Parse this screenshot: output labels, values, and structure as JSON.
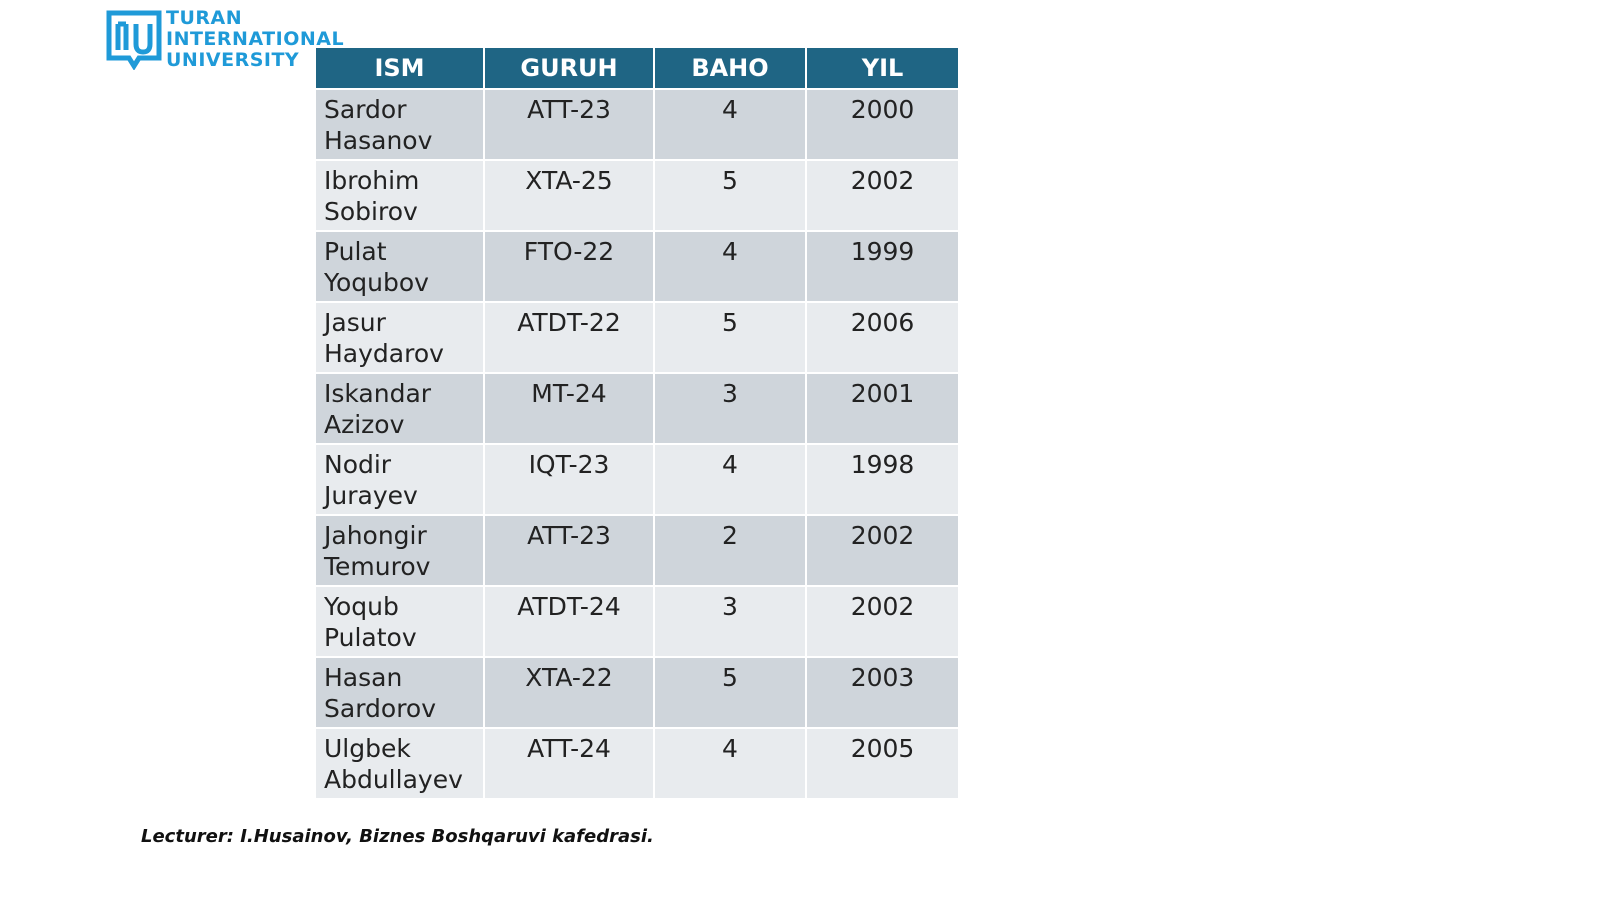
{
  "logo": {
    "lines": [
      "TURAN",
      "INTERNATIONAL",
      "UNIVERSITY"
    ]
  },
  "table": {
    "header": [
      "ISM",
      "GURUH",
      "BAHO",
      "YIL"
    ],
    "rows": [
      [
        "Sardor Hasanov",
        "ATT-23",
        4,
        2000
      ],
      [
        "Ibrohim Sobirov",
        "XTA-25",
        5,
        2002
      ],
      [
        "Pulat Yoqubov",
        "FTO-22",
        4,
        1999
      ],
      [
        "Jasur Haydarov",
        "ATDT-22",
        5,
        2006
      ],
      [
        "Iskandar Azizov",
        "MT-24",
        3,
        2001
      ],
      [
        "Nodir Jurayev",
        "IQT-23",
        4,
        1998
      ],
      [
        "Jahongir Temurov",
        "ATT-23",
        2,
        2002
      ],
      [
        "Yoqub Pulatov",
        "ATDT-24",
        3,
        2002
      ],
      [
        "Hasan Sardorov",
        "XTA-22",
        5,
        2003
      ],
      [
        "Ulgbek Abdullayev",
        "ATT-24",
        4,
        2005
      ]
    ]
  },
  "footer": "Lecturer: I.Husainov, Biznes Boshqaruvi kafedrasi."
}
